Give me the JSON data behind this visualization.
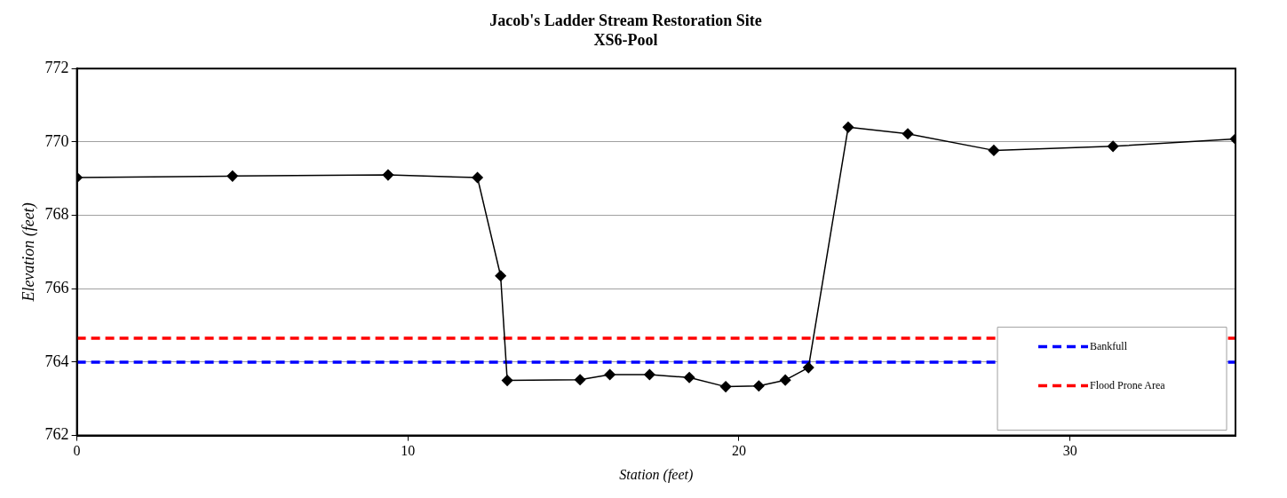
{
  "chart_data": {
    "type": "line",
    "title": "Jacob's Ladder Stream Restoration Site",
    "subtitle": "XS6-Pool",
    "xlabel": "Station (feet)",
    "ylabel": "Elevation (feet)",
    "xlim": [
      0,
      35
    ],
    "xticks": [
      0,
      10,
      20,
      30
    ],
    "ylim": [
      762,
      772
    ],
    "yticks": [
      762,
      764,
      766,
      768,
      770,
      772
    ],
    "grid": "y",
    "legend": "bottom right",
    "marker": "diamond",
    "series": [
      {
        "color": "#000000",
        "line_style": "solid",
        "x": [
          0,
          4.7,
          9.4,
          12.1,
          12.8,
          13.0,
          15.2,
          16.1,
          17.3,
          18.5,
          19.6,
          20.6,
          21.4,
          22.1,
          23.3,
          25.1,
          27.7,
          31.3,
          35
        ],
        "values": [
          769.03,
          769.07,
          769.1,
          769.03,
          766.35,
          763.5,
          763.52,
          763.66,
          763.66,
          763.58,
          763.33,
          763.35,
          763.51,
          763.85,
          770.4,
          770.22,
          769.77,
          769.88,
          770.08
        ]
      },
      {
        "name": "Bankfull",
        "color": "#0000ff",
        "line_style": "dashed",
        "marker": "none",
        "x": [
          0,
          35
        ],
        "values": [
          764,
          764
        ]
      },
      {
        "name": "Flood Prone Area",
        "color": "#ff0000",
        "line_style": "dashed",
        "marker": "none",
        "x": [
          0,
          35
        ],
        "values": [
          764.65,
          764.65
        ]
      }
    ]
  }
}
